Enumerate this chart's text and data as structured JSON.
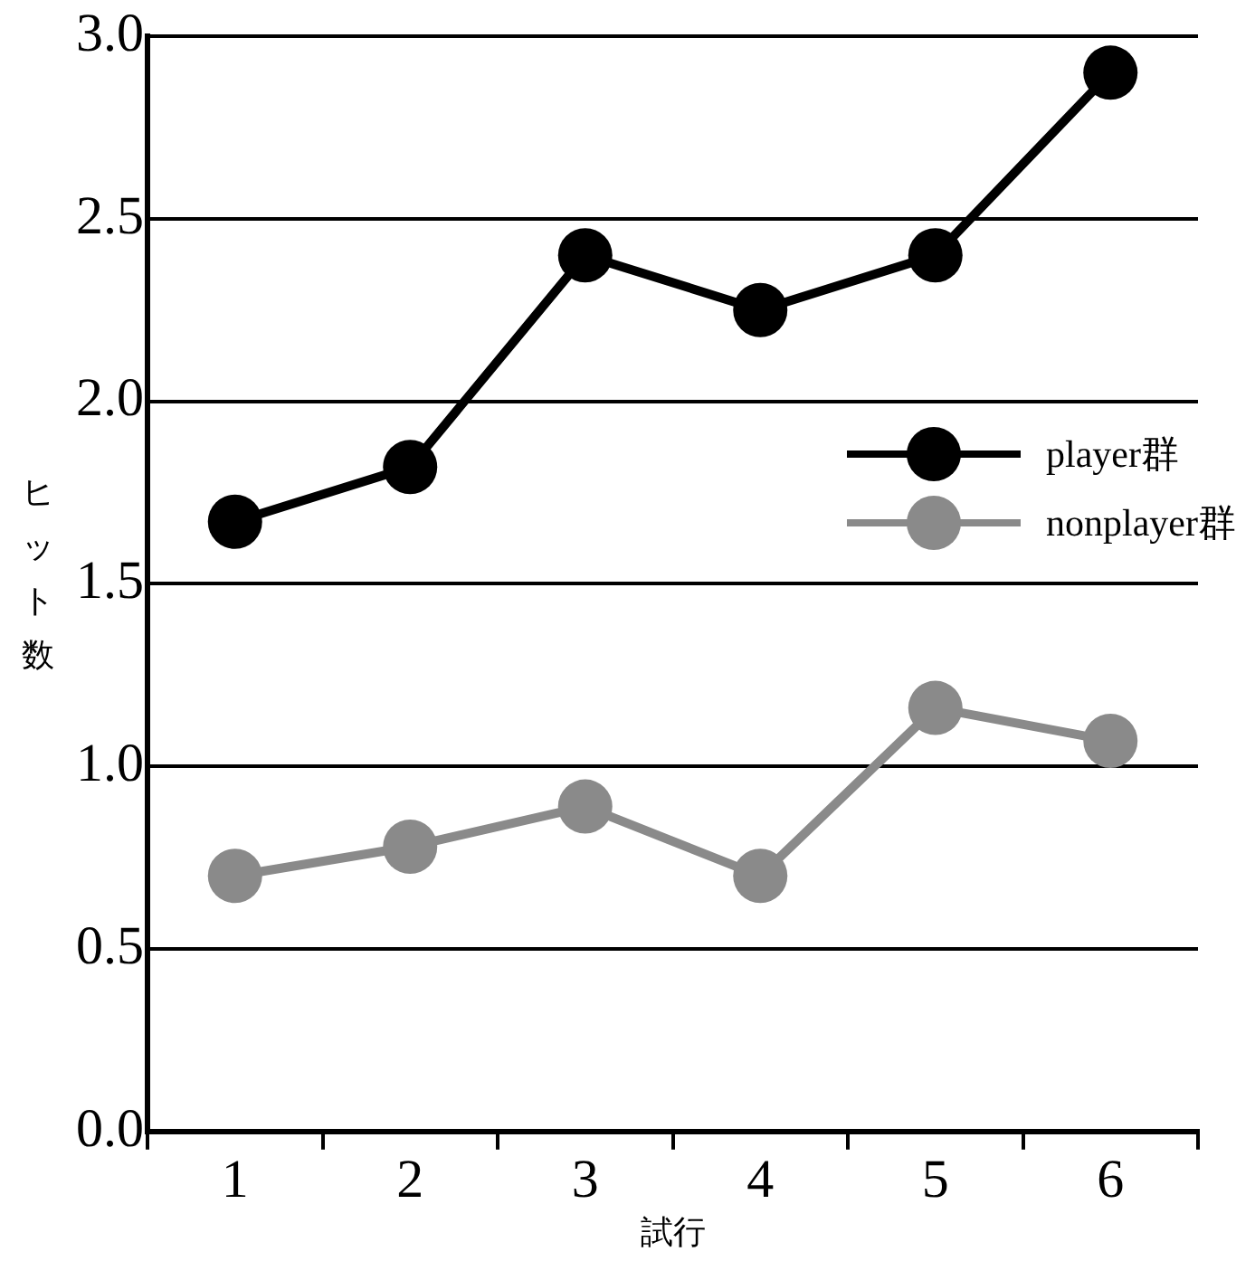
{
  "chart_data": {
    "type": "line",
    "xlabel": "試行",
    "ylabel": "ヒット数",
    "categories": [
      "1",
      "2",
      "3",
      "4",
      "5",
      "6"
    ],
    "series": [
      {
        "name": "player群",
        "color": "#000000",
        "values": [
          1.67,
          1.82,
          2.4,
          2.25,
          2.4,
          2.9
        ]
      },
      {
        "name": "nonplayer群",
        "color": "#8a8a8a",
        "values": [
          0.7,
          0.78,
          0.89,
          0.7,
          1.16,
          1.07
        ]
      }
    ],
    "ylim": [
      0,
      3
    ],
    "yticks": [
      {
        "value": 0,
        "label": "0.0"
      },
      {
        "value": 0.5,
        "label": "0.5"
      },
      {
        "value": 1,
        "label": "1.0"
      },
      {
        "value": 1.5,
        "label": "1.5"
      },
      {
        "value": 2,
        "label": "2.0"
      },
      {
        "value": 2.5,
        "label": "2.5"
      },
      {
        "value": 3,
        "label": "3.0"
      }
    ],
    "grid": "y",
    "legend": "right",
    "marker": "circle",
    "line_style": "solid"
  }
}
